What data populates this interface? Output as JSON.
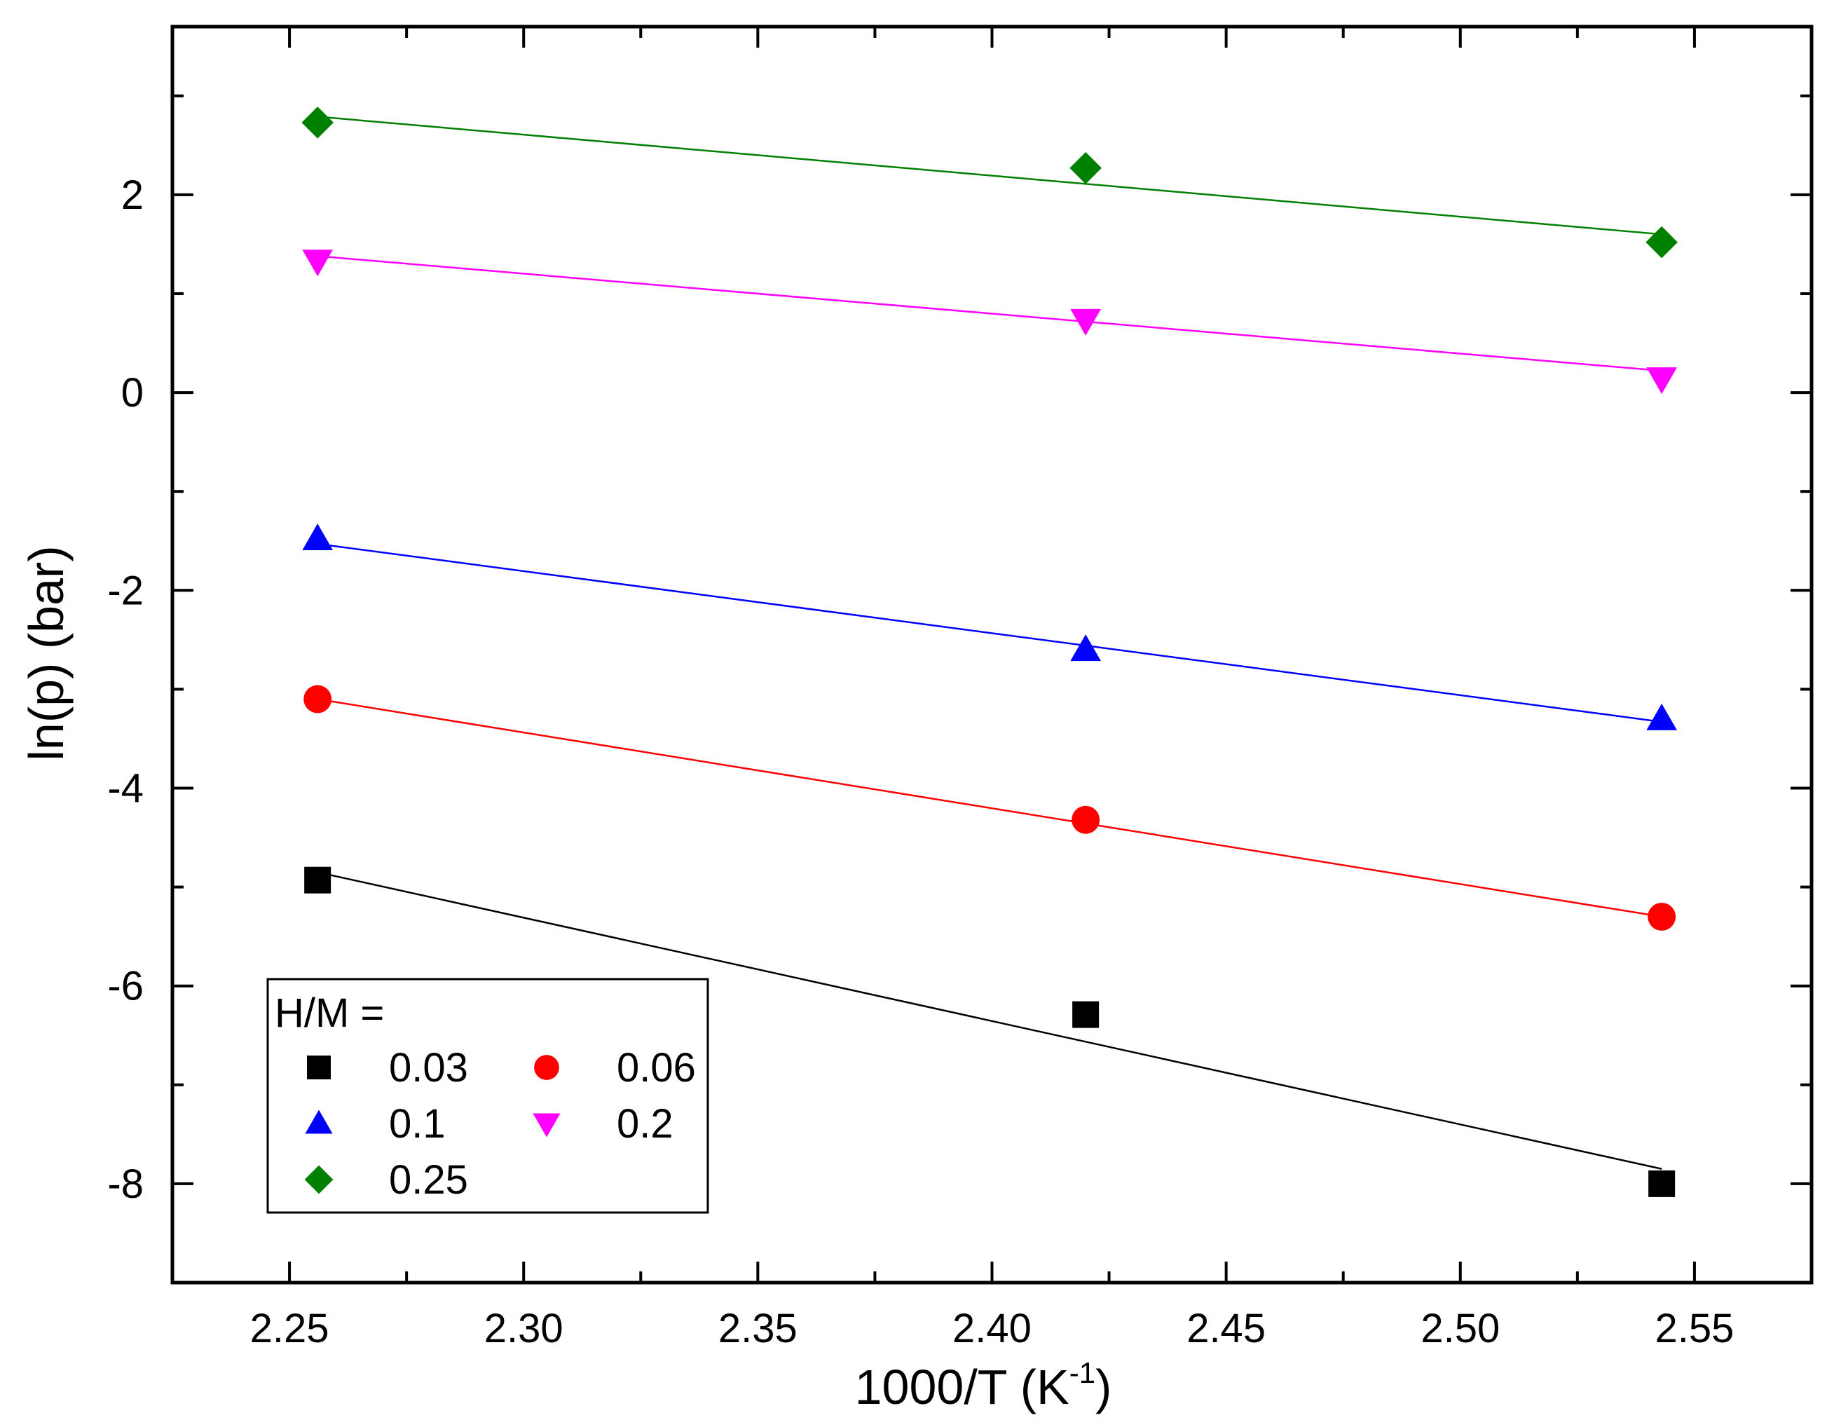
{
  "chart_data": {
    "type": "scatter",
    "title": "",
    "xlabel": {
      "main": "1000/T (K",
      "sup": "-1",
      "close": ")"
    },
    "ylabel": "ln(p) (bar)",
    "xlim": [
      2.225,
      2.575
    ],
    "ylim": [
      -9,
      3.7
    ],
    "x_ticks": [
      2.25,
      2.3,
      2.35,
      2.4,
      2.45,
      2.5,
      2.55
    ],
    "x_tick_labels": [
      "2.25",
      "2.30",
      "2.35",
      "2.40",
      "2.45",
      "2.50",
      "2.55"
    ],
    "y_ticks": [
      -8,
      -6,
      -4,
      -2,
      0,
      2
    ],
    "y_tick_labels": [
      "-8",
      "-6",
      "-4",
      "-2",
      "0",
      "2"
    ],
    "legend": {
      "title": "H/M =",
      "position": "bottom-left"
    },
    "x": [
      2.256,
      2.42,
      2.543
    ],
    "series": [
      {
        "name": "0.03",
        "marker": "square",
        "color": "#000000",
        "values": [
          -4.93,
          -6.29,
          -8.0
        ],
        "fit": [
          -4.85,
          -7.85
        ]
      },
      {
        "name": "0.06",
        "marker": "circle",
        "color": "#ff0000",
        "values": [
          -3.1,
          -4.32,
          -5.3
        ],
        "fit": [
          -3.1,
          -5.3
        ]
      },
      {
        "name": "0.1",
        "marker": "triangle-up",
        "color": "#0000ff",
        "values": [
          -1.48,
          -2.6,
          -3.3
        ],
        "fit": [
          -1.53,
          -3.33
        ]
      },
      {
        "name": "0.2",
        "marker": "triangle-down",
        "color": "#ff00ff",
        "values": [
          1.33,
          0.73,
          0.14
        ],
        "fit": [
          1.38,
          0.22
        ]
      },
      {
        "name": "0.25",
        "marker": "diamond",
        "color": "#008000",
        "values": [
          2.73,
          2.27,
          1.52
        ],
        "fit": [
          2.79,
          1.6
        ]
      }
    ]
  }
}
